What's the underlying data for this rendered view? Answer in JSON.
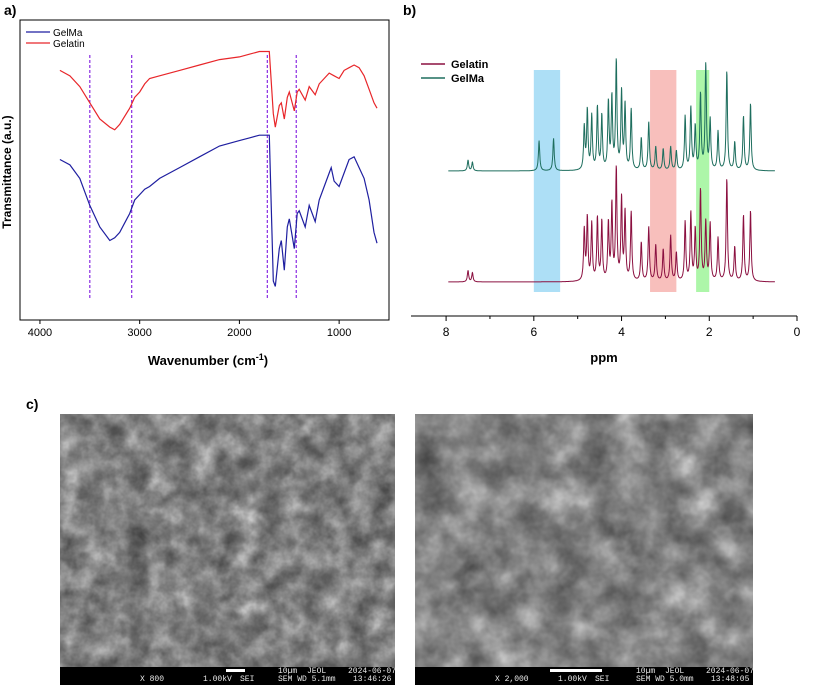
{
  "panels": {
    "a": "a)",
    "b": "b)",
    "c": "c)"
  },
  "chart_data": [
    {
      "id": "a",
      "type": "line",
      "xlabel": "Wavenumber (cm",
      "xlabel_sup": "-1",
      "xlabel_close": ")",
      "ylabel": "Transmittance (a.u.)",
      "xlim": [
        4200,
        500
      ],
      "x_reversed": true,
      "xticks": [
        4000,
        3000,
        2000,
        1000
      ],
      "legend_position": "top-left",
      "series": [
        {
          "name": "GelMa",
          "color": "#1f1fa0",
          "points": [
            [
              3800,
              0.55
            ],
            [
              3700,
              0.53
            ],
            [
              3600,
              0.48
            ],
            [
              3500,
              0.38
            ],
            [
              3400,
              0.3
            ],
            [
              3300,
              0.25
            ],
            [
              3250,
              0.26
            ],
            [
              3200,
              0.28
            ],
            [
              3100,
              0.35
            ],
            [
              3050,
              0.4
            ],
            [
              3000,
              0.42
            ],
            [
              2950,
              0.44
            ],
            [
              2900,
              0.45
            ],
            [
              2800,
              0.48
            ],
            [
              2600,
              0.52
            ],
            [
              2400,
              0.56
            ],
            [
              2200,
              0.6
            ],
            [
              2000,
              0.62
            ],
            [
              1900,
              0.63
            ],
            [
              1800,
              0.64
            ],
            [
              1700,
              0.64
            ],
            [
              1660,
              0.1
            ],
            [
              1640,
              0.08
            ],
            [
              1600,
              0.22
            ],
            [
              1580,
              0.25
            ],
            [
              1550,
              0.14
            ],
            [
              1520,
              0.3
            ],
            [
              1500,
              0.33
            ],
            [
              1450,
              0.22
            ],
            [
              1420,
              0.35
            ],
            [
              1400,
              0.36
            ],
            [
              1340,
              0.3
            ],
            [
              1300,
              0.38
            ],
            [
              1240,
              0.32
            ],
            [
              1200,
              0.4
            ],
            [
              1150,
              0.45
            ],
            [
              1100,
              0.5
            ],
            [
              1080,
              0.52
            ],
            [
              1050,
              0.47
            ],
            [
              1000,
              0.45
            ],
            [
              950,
              0.5
            ],
            [
              900,
              0.55
            ],
            [
              850,
              0.56
            ],
            [
              800,
              0.52
            ],
            [
              750,
              0.48
            ],
            [
              700,
              0.4
            ],
            [
              650,
              0.28
            ],
            [
              620,
              0.24
            ]
          ]
        },
        {
          "name": "Gelatin",
          "color": "#e8262a",
          "points": [
            [
              3800,
              0.88
            ],
            [
              3700,
              0.86
            ],
            [
              3600,
              0.82
            ],
            [
              3500,
              0.76
            ],
            [
              3400,
              0.7
            ],
            [
              3300,
              0.67
            ],
            [
              3250,
              0.66
            ],
            [
              3200,
              0.68
            ],
            [
              3100,
              0.74
            ],
            [
              3050,
              0.78
            ],
            [
              3000,
              0.8
            ],
            [
              2950,
              0.83
            ],
            [
              2900,
              0.85
            ],
            [
              2800,
              0.86
            ],
            [
              2600,
              0.88
            ],
            [
              2400,
              0.9
            ],
            [
              2200,
              0.92
            ],
            [
              2000,
              0.93
            ],
            [
              1900,
              0.94
            ],
            [
              1800,
              0.95
            ],
            [
              1700,
              0.95
            ],
            [
              1660,
              0.72
            ],
            [
              1640,
              0.67
            ],
            [
              1600,
              0.75
            ],
            [
              1580,
              0.76
            ],
            [
              1550,
              0.7
            ],
            [
              1520,
              0.78
            ],
            [
              1500,
              0.8
            ],
            [
              1450,
              0.73
            ],
            [
              1420,
              0.8
            ],
            [
              1400,
              0.81
            ],
            [
              1340,
              0.77
            ],
            [
              1300,
              0.82
            ],
            [
              1240,
              0.79
            ],
            [
              1200,
              0.83
            ],
            [
              1150,
              0.85
            ],
            [
              1100,
              0.87
            ],
            [
              1050,
              0.86
            ],
            [
              1000,
              0.85
            ],
            [
              950,
              0.88
            ],
            [
              900,
              0.89
            ],
            [
              850,
              0.9
            ],
            [
              800,
              0.89
            ],
            [
              750,
              0.86
            ],
            [
              700,
              0.81
            ],
            [
              650,
              0.76
            ],
            [
              620,
              0.74
            ]
          ]
        }
      ],
      "reference_lines_x": [
        3500,
        3080,
        1720,
        1430
      ]
    },
    {
      "id": "b",
      "type": "line",
      "xlabel": "ppm",
      "ylabel": "",
      "xlim": [
        8.8,
        0
      ],
      "x_reversed": true,
      "xticks": [
        8,
        6,
        4,
        2,
        0
      ],
      "legend_position": "top-left",
      "highlight_bands": [
        {
          "from": 5.4,
          "to": 6.0,
          "color": "#9fd9f5"
        },
        {
          "from": 2.75,
          "to": 3.35,
          "color": "#f7b4b0"
        },
        {
          "from": 2.0,
          "to": 2.3,
          "color": "#9ff59a"
        }
      ],
      "series": [
        {
          "name": "Gelatin",
          "color": "#8b1040",
          "peaks": [
            [
              7.5,
              0.1
            ],
            [
              7.4,
              0.08
            ],
            [
              4.85,
              0.45
            ],
            [
              4.78,
              0.55
            ],
            [
              4.68,
              0.5
            ],
            [
              4.55,
              0.55
            ],
            [
              4.45,
              0.52
            ],
            [
              4.3,
              0.5
            ],
            [
              4.22,
              0.66
            ],
            [
              4.12,
              0.98
            ],
            [
              4.0,
              0.72
            ],
            [
              3.92,
              0.6
            ],
            [
              3.78,
              0.6
            ],
            [
              3.55,
              0.34
            ],
            [
              3.38,
              0.48
            ],
            [
              3.22,
              0.32
            ],
            [
              3.05,
              0.28
            ],
            [
              2.88,
              0.4
            ],
            [
              2.75,
              0.25
            ],
            [
              2.55,
              0.52
            ],
            [
              2.42,
              0.6
            ],
            [
              2.32,
              0.45
            ],
            [
              2.2,
              0.8
            ],
            [
              2.08,
              0.52
            ],
            [
              1.98,
              0.5
            ],
            [
              1.8,
              0.38
            ],
            [
              1.6,
              0.9
            ],
            [
              1.42,
              0.3
            ],
            [
              1.22,
              0.58
            ],
            [
              1.06,
              0.62
            ]
          ]
        },
        {
          "name": "GelMa",
          "color": "#1e6e5e",
          "peaks": [
            [
              7.5,
              0.1
            ],
            [
              7.4,
              0.08
            ],
            [
              5.88,
              0.28
            ],
            [
              5.55,
              0.3
            ],
            [
              4.85,
              0.4
            ],
            [
              4.78,
              0.55
            ],
            [
              4.68,
              0.5
            ],
            [
              4.55,
              0.58
            ],
            [
              4.45,
              0.5
            ],
            [
              4.3,
              0.62
            ],
            [
              4.22,
              0.66
            ],
            [
              4.12,
              1.0
            ],
            [
              4.0,
              0.72
            ],
            [
              3.92,
              0.6
            ],
            [
              3.78,
              0.56
            ],
            [
              3.55,
              0.3
            ],
            [
              3.38,
              0.45
            ],
            [
              3.22,
              0.22
            ],
            [
              3.05,
              0.2
            ],
            [
              2.88,
              0.22
            ],
            [
              2.75,
              0.18
            ],
            [
              2.55,
              0.5
            ],
            [
              2.42,
              0.58
            ],
            [
              2.32,
              0.4
            ],
            [
              2.2,
              0.7
            ],
            [
              2.08,
              0.98
            ],
            [
              1.98,
              0.46
            ],
            [
              1.8,
              0.36
            ],
            [
              1.6,
              0.92
            ],
            [
              1.42,
              0.26
            ],
            [
              1.22,
              0.5
            ],
            [
              1.06,
              0.62
            ]
          ]
        }
      ]
    }
  ],
  "sem_images": [
    {
      "magnification": "X 800",
      "voltage": "1.00kV",
      "mode": "SEI",
      "scale": "10µm",
      "maker": "JEOL",
      "date": "2024-06-07",
      "wd": "SEM   WD 5.1mm",
      "time": "13:46:26"
    },
    {
      "magnification": "X 2,000",
      "voltage": "1.00kV",
      "mode": "SEI",
      "scale": "10µm",
      "maker": "JEOL",
      "date": "2024-06-07",
      "wd": "SEM   WD 5.0mm",
      "time": "13:48:05"
    }
  ]
}
